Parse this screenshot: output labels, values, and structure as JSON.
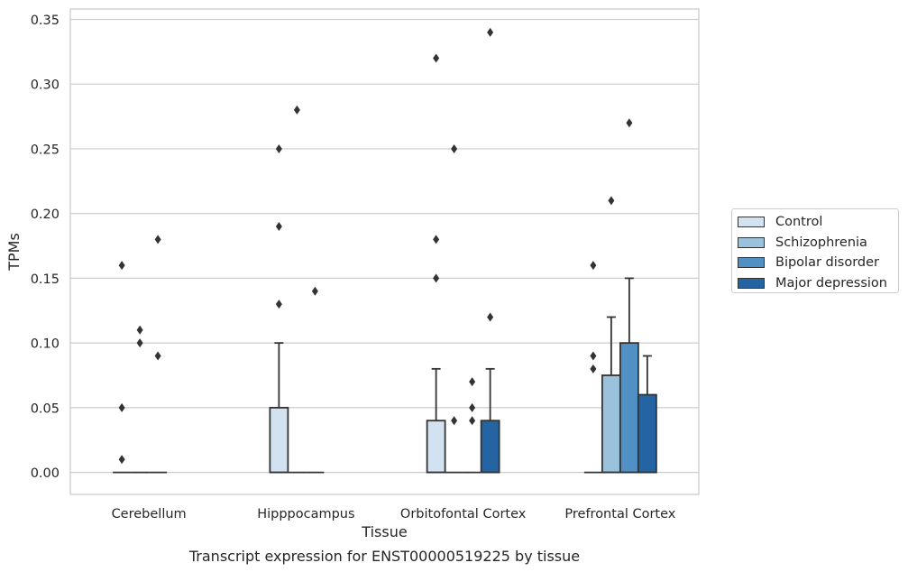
{
  "chart_data": {
    "type": "box",
    "title": "Transcript expression for ENST00000519225 by tissue",
    "xlabel": "Tissue",
    "ylabel": "TPMs",
    "ylim": [
      -0.017,
      0.358
    ],
    "yticks": [
      "0.00",
      "0.05",
      "0.10",
      "0.15",
      "0.20",
      "0.25",
      "0.30",
      "0.35"
    ],
    "grid": "horizontal",
    "legend_position": "right",
    "categories": [
      "Cerebellum",
      "Hipppocampus",
      "Orbitofontal Cortex",
      "Prefrontal Cortex"
    ],
    "series": [
      {
        "name": "Control",
        "color": "#d3e2f1",
        "boxes": [
          {
            "q1": 0,
            "median": 0,
            "q3": 0,
            "whisker_low": 0,
            "whisker_high": 0,
            "outliers": [
              0.01,
              0.05,
              0.16
            ]
          },
          {
            "q1": 0,
            "median": 0,
            "q3": 0.05,
            "whisker_low": 0,
            "whisker_high": 0.1,
            "outliers": [
              0.13,
              0.19,
              0.25
            ]
          },
          {
            "q1": 0,
            "median": 0,
            "q3": 0.04,
            "whisker_low": 0,
            "whisker_high": 0.08,
            "outliers": [
              0.15,
              0.18,
              0.32
            ]
          },
          {
            "q1": 0,
            "median": 0,
            "q3": 0,
            "whisker_low": 0,
            "whisker_high": 0,
            "outliers": [
              0.08,
              0.09,
              0.16
            ]
          }
        ]
      },
      {
        "name": "Schizophrenia",
        "color": "#9ac2dc",
        "boxes": [
          {
            "q1": 0,
            "median": 0,
            "q3": 0,
            "whisker_low": 0,
            "whisker_high": 0,
            "outliers": [
              0.1,
              0.11
            ]
          },
          {
            "q1": 0,
            "median": 0,
            "q3": 0,
            "whisker_low": 0,
            "whisker_high": 0,
            "outliers": [
              0.28
            ]
          },
          {
            "q1": 0,
            "median": 0,
            "q3": 0,
            "whisker_low": 0,
            "whisker_high": 0,
            "outliers": [
              0.04,
              0.25
            ]
          },
          {
            "q1": 0,
            "median": 0,
            "q3": 0.075,
            "whisker_low": 0,
            "whisker_high": 0.12,
            "outliers": [
              0.21
            ]
          }
        ]
      },
      {
        "name": "Bipolar disorder",
        "color": "#5090c4",
        "boxes": [
          {
            "q1": 0,
            "median": 0,
            "q3": 0,
            "whisker_low": 0,
            "whisker_high": 0,
            "outliers": [
              0.09,
              0.18
            ]
          },
          {
            "q1": 0,
            "median": 0,
            "q3": 0,
            "whisker_low": 0,
            "whisker_high": 0,
            "outliers": [
              0.14
            ]
          },
          {
            "q1": 0,
            "median": 0,
            "q3": 0,
            "whisker_low": 0,
            "whisker_high": 0,
            "outliers": [
              0.04,
              0.05,
              0.07
            ]
          },
          {
            "q1": 0,
            "median": 0,
            "q3": 0.1,
            "whisker_low": 0,
            "whisker_high": 0.15,
            "outliers": [
              0.27
            ]
          }
        ]
      },
      {
        "name": "Major depression",
        "color": "#2564a3",
        "boxes": [
          null,
          null,
          {
            "q1": 0,
            "median": 0,
            "q3": 0.04,
            "whisker_low": 0,
            "whisker_high": 0.08,
            "outliers": [
              0.12,
              0.34
            ]
          },
          {
            "q1": 0,
            "median": 0,
            "q3": 0.06,
            "whisker_low": 0,
            "whisker_high": 0.09,
            "outliers": []
          }
        ]
      }
    ]
  }
}
